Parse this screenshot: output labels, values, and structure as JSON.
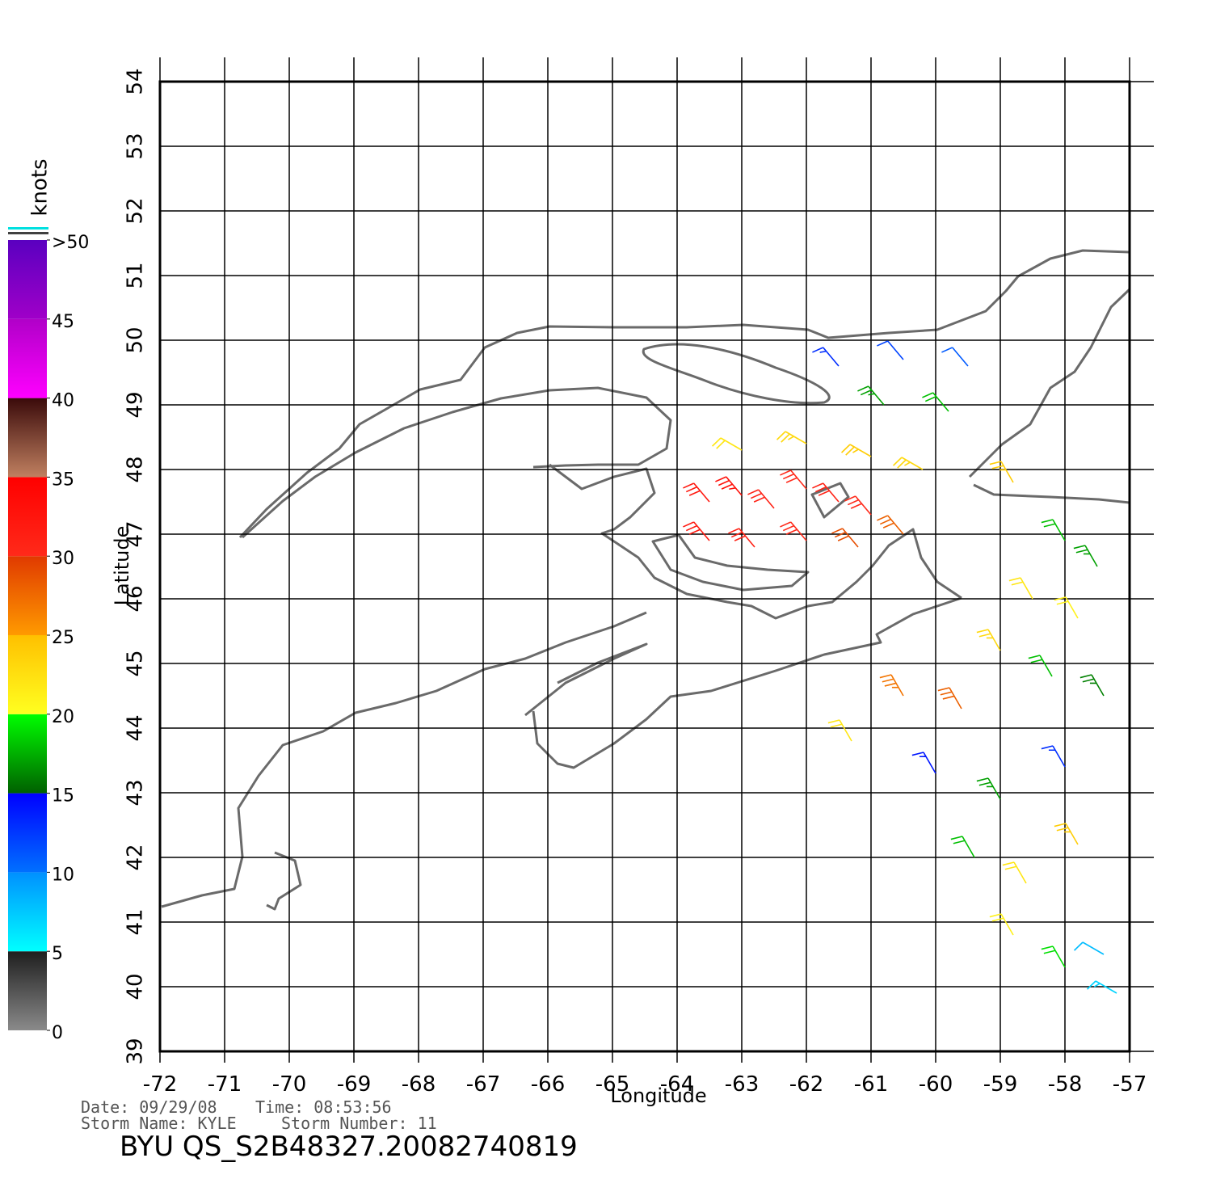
{
  "map": {
    "xlim": [
      -72,
      -57
    ],
    "ylim": [
      39,
      54
    ],
    "xticks": [
      -72,
      -71,
      -70,
      -69,
      -68,
      -67,
      -66,
      -65,
      -64,
      -63,
      -62,
      -61,
      -60,
      -59,
      -58,
      -57
    ],
    "yticks": [
      39,
      40,
      41,
      42,
      43,
      44,
      45,
      46,
      47,
      48,
      49,
      50,
      51,
      52,
      53,
      54
    ],
    "x_label": "Longitude",
    "y_label": "Latitude",
    "grid": true
  },
  "colorbar": {
    "title": "knots",
    "ticks": [
      0,
      5,
      10,
      15,
      20,
      25,
      30,
      35,
      40,
      45,
      {
        "value": 50,
        "label": ">50"
      }
    ],
    "colors": [
      [
        "#8a8a8a",
        "#1e1e1e"
      ],
      [
        "#00ffff",
        "#0090ff"
      ],
      [
        "#0070ff",
        "#0000ff"
      ],
      [
        "#006000",
        "#00ff00"
      ],
      [
        "#ffff20",
        "#ffc000"
      ],
      [
        "#ff9a00",
        "#e03a00"
      ],
      [
        "#ff2a1a",
        "#ff0000"
      ],
      [
        "#c08060",
        "#3a0a0a"
      ],
      [
        "#ff00ff",
        "#b000c8"
      ],
      [
        "#a000c8",
        "#5a00c0"
      ]
    ]
  },
  "winds": {
    "lon": [
      -63.5,
      -63,
      -62.5,
      -62,
      -61.5,
      -61,
      -63.5,
      -62.8,
      -62,
      -61.2,
      -60.5,
      -63,
      -62,
      -61,
      -60.2,
      -61.5,
      -60.5,
      -59.5,
      -60.8,
      -59.8,
      -58.8,
      -58,
      -57.5,
      -58.5,
      -57.8,
      -59,
      -58.2,
      -57.4,
      -60.5,
      -59.6,
      -61.3,
      -60,
      -59,
      -58,
      -59.4,
      -58.6,
      -57.8,
      -58.8,
      -58,
      -57.4,
      -57.2
    ],
    "lat": [
      47.5,
      47.6,
      47.4,
      47.7,
      47.5,
      47.3,
      46.9,
      46.8,
      46.9,
      46.8,
      47.0,
      48.3,
      48.4,
      48.2,
      48.0,
      49.6,
      49.7,
      49.6,
      49.0,
      48.9,
      47.8,
      46.9,
      46.5,
      46.0,
      45.7,
      45.2,
      44.8,
      44.5,
      44.5,
      44.3,
      43.8,
      43.3,
      42.9,
      43.4,
      42.0,
      41.6,
      42.2,
      40.8,
      40.3,
      40.5,
      39.9
    ],
    "speed": [
      32,
      33,
      31,
      30,
      31,
      30,
      32,
      31,
      30,
      29,
      28,
      22,
      23,
      24,
      23,
      13,
      12,
      11,
      17,
      18,
      24,
      18,
      17,
      22,
      21,
      23,
      18,
      16,
      27,
      28,
      22,
      14,
      17,
      13,
      18,
      22,
      24,
      21,
      19,
      8,
      7
    ],
    "direction": [
      320,
      320,
      320,
      320,
      320,
      320,
      320,
      320,
      320,
      320,
      320,
      300,
      300,
      300,
      300,
      320,
      320,
      320,
      320,
      320,
      330,
      330,
      330,
      330,
      330,
      330,
      330,
      330,
      330,
      330,
      330,
      330,
      330,
      330,
      330,
      330,
      330,
      330,
      330,
      300,
      300
    ]
  },
  "footer": {
    "date": "Date: 09/29/08",
    "time": "Time: 08:53:56",
    "storm_name": "Storm Name: KYLE",
    "storm_number": "Storm Number: 11",
    "title": "BYU QS_S2B48327.20082740819"
  }
}
